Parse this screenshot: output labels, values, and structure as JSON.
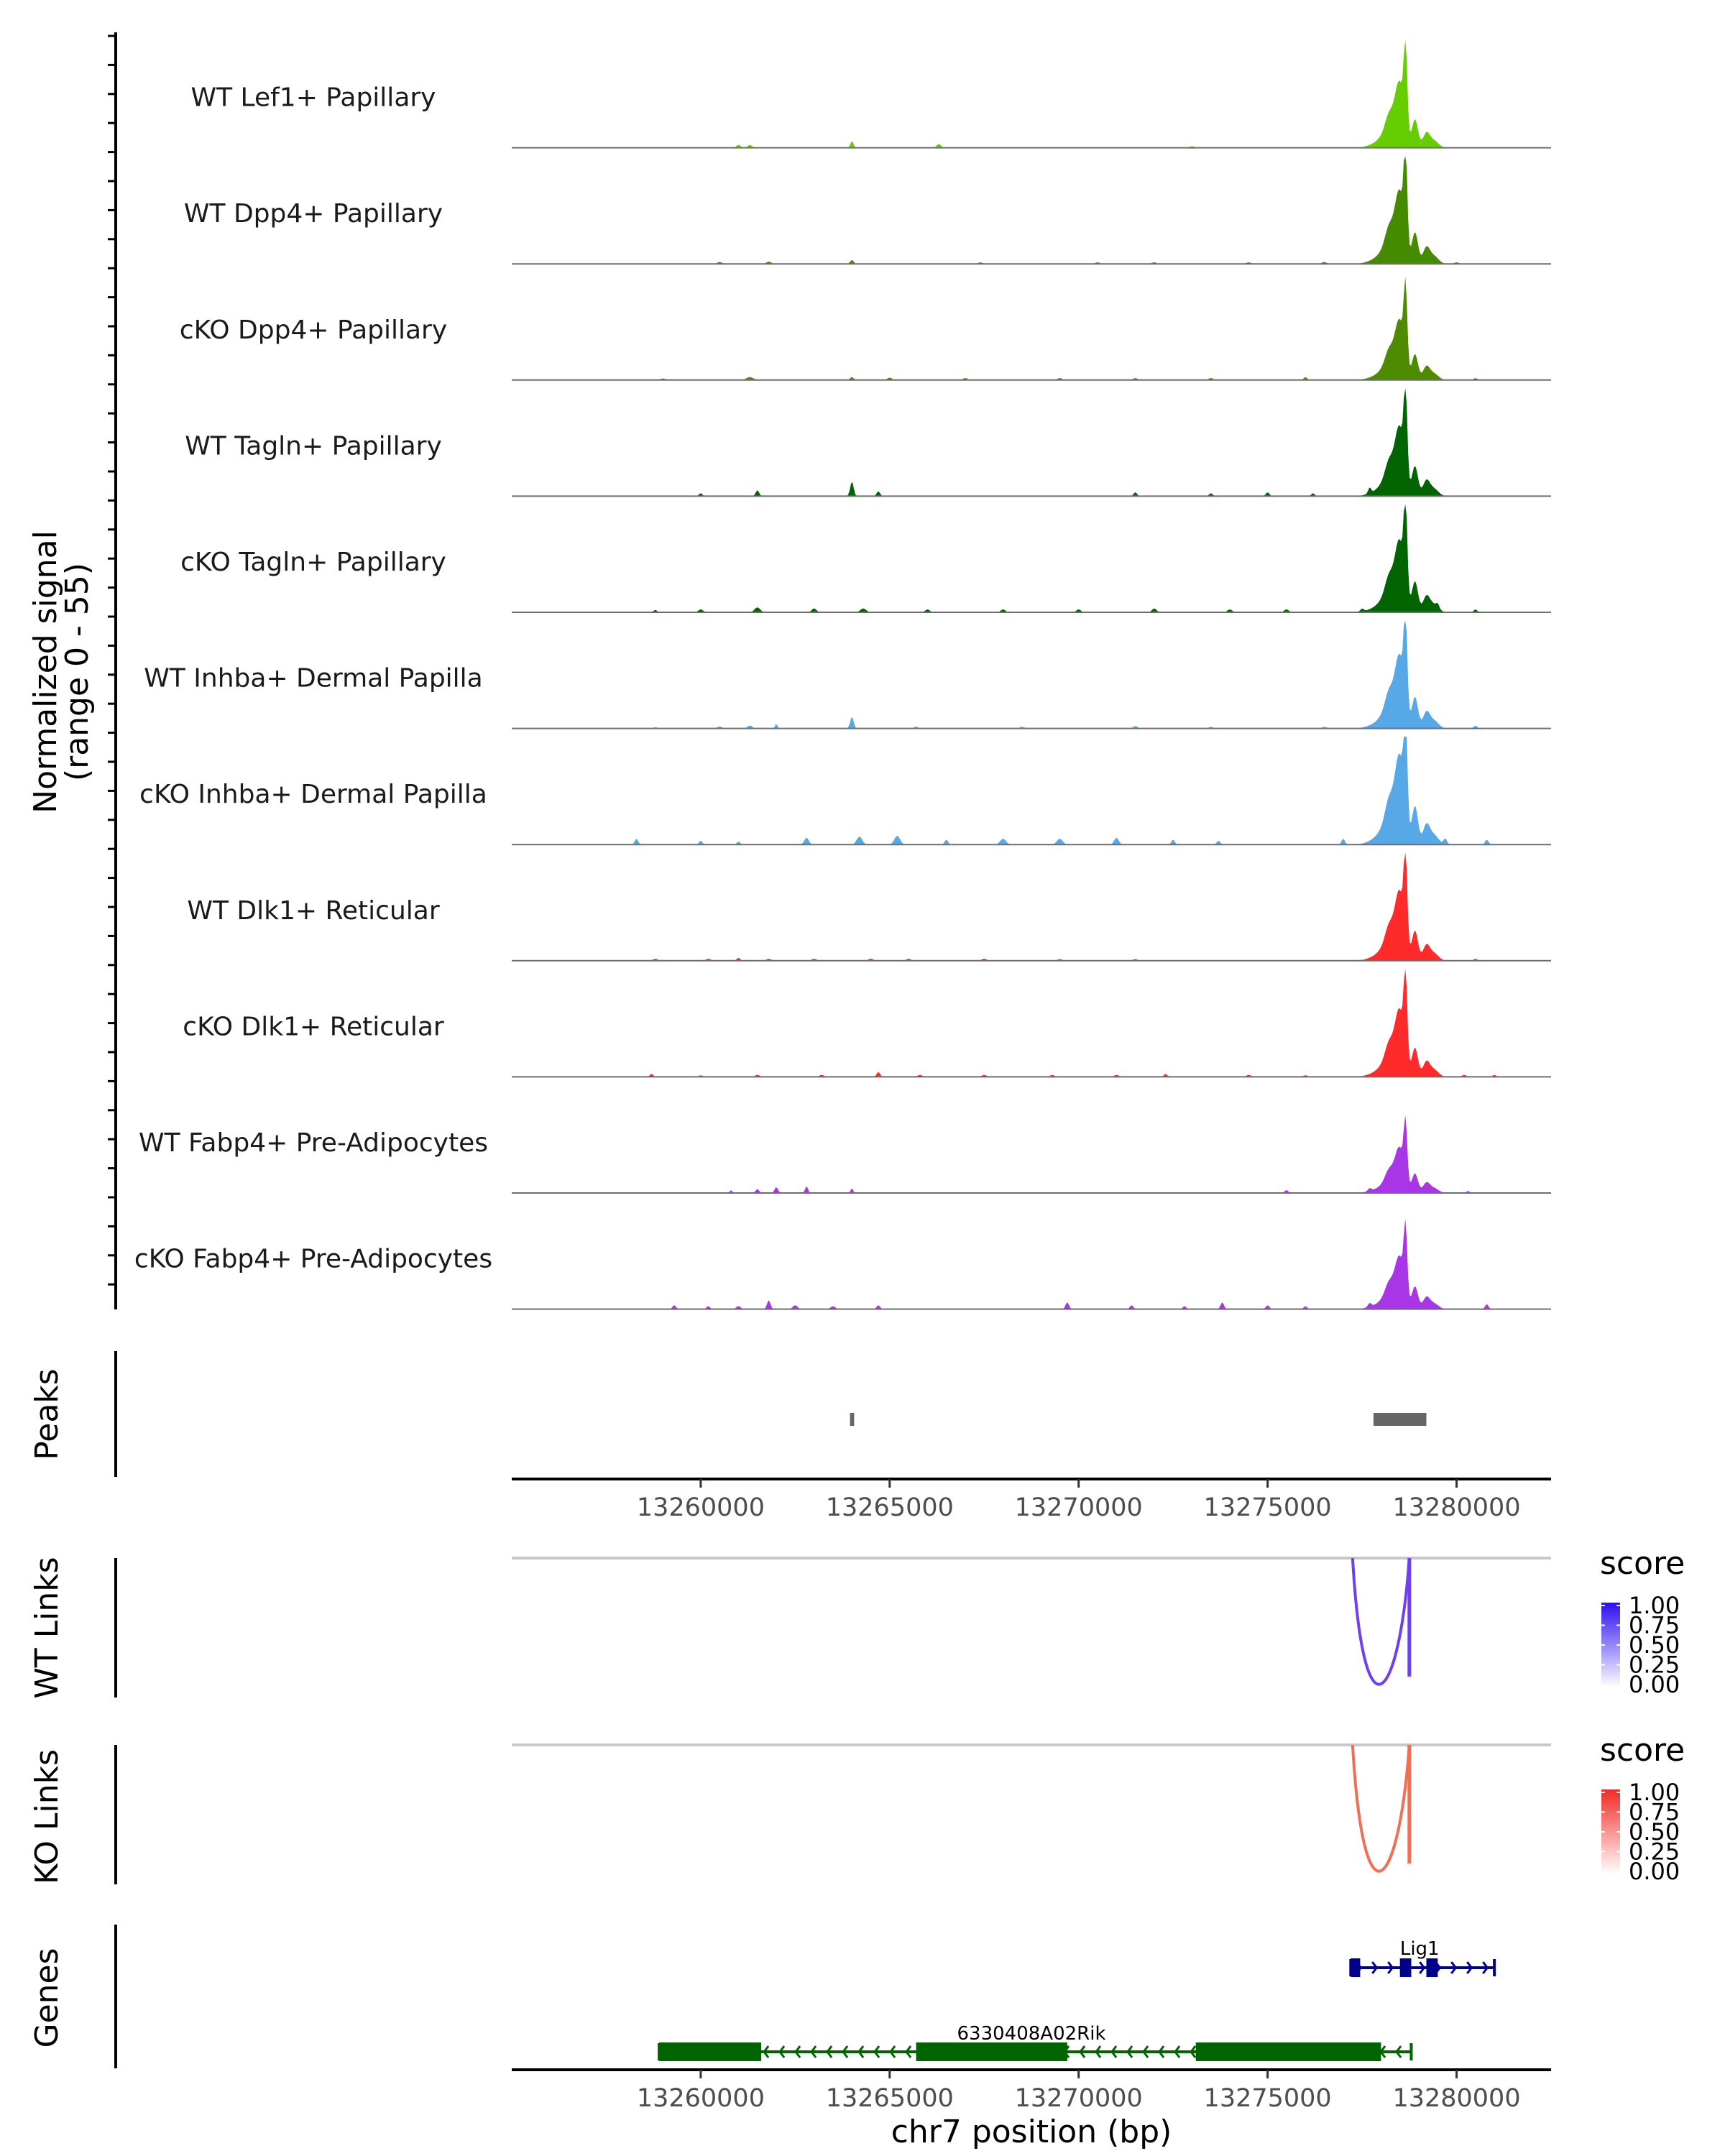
{
  "chart_data": {
    "type": "area",
    "title": "",
    "xlabel": "chr7 position (bp)",
    "x_range": [
      13255000,
      13282500
    ],
    "x_ticks": [
      13260000,
      13265000,
      13270000,
      13275000,
      13280000
    ],
    "x_tick_labels": [
      "13260000",
      "13265000",
      "13270000",
      "13275000",
      "13280000"
    ],
    "coverage": {
      "ylabel": "Normalized signal",
      "ylabel_range": "(range 0 - 55)",
      "ylim": [
        0,
        55
      ],
      "tracks": [
        {
          "name": "WT Lef1+ Papillary",
          "color": "#66cd00",
          "peak_scale": 0.9,
          "minor": [
            [
              13261000,
              1.5,
              0.35
            ],
            [
              13261300,
              1.5,
              0.35
            ],
            [
              13264000,
              3.5,
              0.25
            ],
            [
              13266300,
              2.0,
              0.35
            ],
            [
              13273000,
              0.8,
              0.4
            ]
          ]
        },
        {
          "name": "WT Dpp4+ Papillary",
          "color": "#458b00",
          "peak_scale": 1.0,
          "minor": [
            [
              13260500,
              1.0,
              0.4
            ],
            [
              13261800,
              1.2,
              0.4
            ],
            [
              13264000,
              2.0,
              0.3
            ],
            [
              13267400,
              0.8,
              0.4
            ],
            [
              13270500,
              0.8,
              0.4
            ],
            [
              13272000,
              0.8,
              0.4
            ],
            [
              13274500,
              0.8,
              0.4
            ],
            [
              13276500,
              1.0,
              0.4
            ],
            [
              13280000,
              0.8,
              0.4
            ]
          ]
        },
        {
          "name": "cKO Dpp4+ Papillary",
          "color": "#4e8b00",
          "peak_scale": 0.82,
          "minor": [
            [
              13259000,
              0.8,
              0.4
            ],
            [
              13261300,
              1.5,
              0.6
            ],
            [
              13264000,
              1.5,
              0.3
            ],
            [
              13265000,
              1.2,
              0.4
            ],
            [
              13267000,
              1.0,
              0.4
            ],
            [
              13269500,
              1.0,
              0.4
            ],
            [
              13271500,
              1.0,
              0.4
            ],
            [
              13273500,
              1.0,
              0.4
            ],
            [
              13276000,
              1.5,
              0.3
            ],
            [
              13280500,
              1.0,
              0.3
            ]
          ]
        },
        {
          "name": "WT Tagln+ Papillary",
          "color": "#006400",
          "peak_scale": 0.95,
          "minor": [
            [
              13260000,
              1.5,
              0.3
            ],
            [
              13261500,
              3.0,
              0.3
            ],
            [
              13264000,
              7.5,
              0.3
            ],
            [
              13264700,
              2.5,
              0.3
            ],
            [
              13271500,
              2.0,
              0.3
            ],
            [
              13273500,
              1.5,
              0.3
            ],
            [
              13275000,
              2.0,
              0.3
            ],
            [
              13276200,
              1.5,
              0.3
            ],
            [
              13277700,
              3.0,
              0.25
            ]
          ]
        },
        {
          "name": "cKO Tagln+ Papillary",
          "color": "#006400",
          "peak_scale": 0.98,
          "minor": [
            [
              13258800,
              1.2,
              0.3
            ],
            [
              13260000,
              1.5,
              0.4
            ],
            [
              13261500,
              2.5,
              0.5
            ],
            [
              13263000,
              2.0,
              0.4
            ],
            [
              13264300,
              2.0,
              0.5
            ],
            [
              13266000,
              1.5,
              0.4
            ],
            [
              13268000,
              1.5,
              0.4
            ],
            [
              13270000,
              1.5,
              0.4
            ],
            [
              13272000,
              2.0,
              0.4
            ],
            [
              13274000,
              1.5,
              0.4
            ],
            [
              13275500,
              1.5,
              0.4
            ],
            [
              13277500,
              1.5,
              0.3
            ],
            [
              13279500,
              2.0,
              0.25
            ],
            [
              13280500,
              1.5,
              0.3
            ]
          ]
        },
        {
          "name": "WT Inhba+ Dermal Papilla",
          "color": "#56a8e6",
          "peak_scale": 1.0,
          "minor": [
            [
              13258800,
              0.6,
              0.4
            ],
            [
              13260500,
              1.0,
              0.4
            ],
            [
              13261300,
              1.5,
              0.4
            ],
            [
              13262000,
              2.5,
              0.2
            ],
            [
              13264000,
              6.0,
              0.3
            ],
            [
              13265700,
              1.0,
              0.3
            ],
            [
              13268500,
              0.8,
              0.4
            ],
            [
              13271500,
              1.2,
              0.4
            ],
            [
              13273500,
              0.8,
              0.4
            ],
            [
              13276500,
              0.8,
              0.4
            ],
            [
              13280500,
              1.5,
              0.3
            ]
          ]
        },
        {
          "name": "cKO Inhba+ Dermal Papilla",
          "color": "#56a8e6",
          "peak_scale": 1.22,
          "minor": [
            [
              13258300,
              3.0,
              0.3
            ],
            [
              13260000,
              2.0,
              0.3
            ],
            [
              13261000,
              1.5,
              0.3
            ],
            [
              13262800,
              3.5,
              0.4
            ],
            [
              13264200,
              4.0,
              0.5
            ],
            [
              13265200,
              4.5,
              0.5
            ],
            [
              13266500,
              2.5,
              0.3
            ],
            [
              13268000,
              3.0,
              0.5
            ],
            [
              13269500,
              3.0,
              0.5
            ],
            [
              13271000,
              3.5,
              0.4
            ],
            [
              13272500,
              2.5,
              0.3
            ],
            [
              13273700,
              2.0,
              0.3
            ],
            [
              13277000,
              3.0,
              0.3
            ],
            [
              13279700,
              3.0,
              0.3
            ],
            [
              13280800,
              2.5,
              0.3
            ]
          ]
        },
        {
          "name": "WT Dlk1+ Reticular",
          "color": "#ff2a2a",
          "peak_scale": 0.95,
          "minor": [
            [
              13258800,
              1.0,
              0.4
            ],
            [
              13260200,
              1.0,
              0.4
            ],
            [
              13261000,
              1.5,
              0.3
            ],
            [
              13261800,
              1.0,
              0.4
            ],
            [
              13263000,
              1.0,
              0.4
            ],
            [
              13264500,
              1.0,
              0.4
            ],
            [
              13265500,
              1.0,
              0.4
            ],
            [
              13267500,
              1.0,
              0.4
            ],
            [
              13269500,
              0.8,
              0.4
            ],
            [
              13271500,
              0.8,
              0.4
            ],
            [
              13280500,
              1.0,
              0.3
            ]
          ]
        },
        {
          "name": "cKO Dlk1+ Reticular",
          "color": "#ff2a2a",
          "peak_scale": 0.92,
          "minor": [
            [
              13258700,
              1.5,
              0.3
            ],
            [
              13260000,
              0.8,
              0.4
            ],
            [
              13261500,
              1.0,
              0.4
            ],
            [
              13263200,
              1.0,
              0.4
            ],
            [
              13264700,
              2.5,
              0.3
            ],
            [
              13265800,
              1.0,
              0.4
            ],
            [
              13267500,
              1.0,
              0.4
            ],
            [
              13269300,
              1.0,
              0.4
            ],
            [
              13271000,
              1.0,
              0.4
            ],
            [
              13272300,
              1.5,
              0.3
            ],
            [
              13274500,
              1.0,
              0.4
            ],
            [
              13276000,
              0.8,
              0.4
            ],
            [
              13280200,
              1.0,
              0.4
            ],
            [
              13281000,
              1.0,
              0.3
            ]
          ]
        },
        {
          "name": "WT Fabp4+ Pre-Adipocytes",
          "color": "#a835e6",
          "peak_scale": 0.62,
          "minor": [
            [
              13260800,
              1.5,
              0.2
            ],
            [
              13261500,
              2.0,
              0.3
            ],
            [
              13262000,
              3.0,
              0.3
            ],
            [
              13262800,
              3.5,
              0.25
            ],
            [
              13264000,
              2.5,
              0.2
            ],
            [
              13275500,
              1.5,
              0.3
            ],
            [
              13277700,
              1.5,
              0.3
            ],
            [
              13280300,
              1.0,
              0.3
            ]
          ]
        },
        {
          "name": "cKO Fabp4+ Pre-Adipocytes",
          "color": "#a835e6",
          "peak_scale": 0.72,
          "minor": [
            [
              13259300,
              2.0,
              0.3
            ],
            [
              13260200,
              1.5,
              0.3
            ],
            [
              13261000,
              1.5,
              0.4
            ],
            [
              13261800,
              4.5,
              0.3
            ],
            [
              13262500,
              2.0,
              0.4
            ],
            [
              13263500,
              1.5,
              0.4
            ],
            [
              13264700,
              2.0,
              0.3
            ],
            [
              13269700,
              3.5,
              0.3
            ],
            [
              13271400,
              2.0,
              0.3
            ],
            [
              13272800,
              1.5,
              0.3
            ],
            [
              13273800,
              3.5,
              0.3
            ],
            [
              13275000,
              2.0,
              0.3
            ],
            [
              13276000,
              1.5,
              0.3
            ],
            [
              13277700,
              2.0,
              0.3
            ],
            [
              13280800,
              2.5,
              0.3
            ]
          ]
        }
      ],
      "main_peak_profile": [
        [
          13278000,
          3,
          260
        ],
        [
          13278300,
          12,
          200
        ],
        [
          13278500,
          30,
          120
        ],
        [
          13278650,
          47,
          45
        ],
        [
          13278900,
          16,
          80
        ],
        [
          13279200,
          8,
          90
        ],
        [
          13279400,
          4,
          120
        ],
        [
          13278200,
          6,
          90
        ]
      ]
    },
    "peaks": {
      "label": "Peaks",
      "regions": [
        [
          13263950,
          13264060
        ],
        [
          13277800,
          13279200
        ]
      ],
      "color": "#666666"
    },
    "links": [
      {
        "label": "WT Links",
        "legend_title": "score",
        "color": "#7040ee",
        "legend_high": "#2c0ff0",
        "legend_ticks": [
          "1.00",
          "0.75",
          "0.50",
          "0.25",
          "0.00"
        ],
        "arcs": [
          {
            "start": 13277250,
            "end": 13278750,
            "score": 0.75,
            "depth": 0.9
          }
        ]
      },
      {
        "label": "KO Links",
        "legend_title": "score",
        "color": "#f07055",
        "legend_high": "#f02b25",
        "legend_ticks": [
          "1.00",
          "0.75",
          "0.50",
          "0.25",
          "0.00"
        ],
        "arcs": [
          {
            "start": 13277250,
            "end": 13278750,
            "score": 0.75,
            "depth": 0.9
          }
        ]
      }
    ],
    "genes": {
      "label": "Genes",
      "items": [
        {
          "name": "Lig1",
          "strand": "+",
          "start": 13277200,
          "end": 13281000,
          "color": "#00008b",
          "exons": [
            [
              13277200,
              13277450
            ],
            [
              13278500,
              13278800
            ],
            [
              13279200,
              13279500
            ]
          ]
        },
        {
          "name": "6330408A02Rik",
          "strand": "-",
          "start": 13258900,
          "end": 13278800,
          "color": "#006400",
          "exons": [
            [
              13258900,
              13261600
            ],
            [
              13265700,
              13269700
            ],
            [
              13273100,
              13278000
            ]
          ]
        }
      ]
    }
  }
}
